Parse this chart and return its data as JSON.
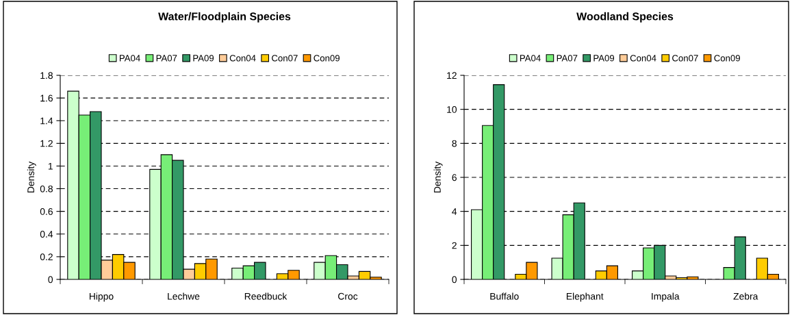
{
  "chart_data": [
    {
      "type": "bar",
      "title": "Water/Floodplain Species",
      "ylabel": "Density",
      "categories": [
        "Hippo",
        "Lechwe",
        "Reedbuck",
        "Croc"
      ],
      "ylim": [
        0,
        1.8
      ],
      "yticks": [
        0,
        0.2,
        0.4,
        0.6,
        0.8,
        1,
        1.2,
        1.4,
        1.6,
        1.8
      ],
      "grid": "y",
      "legend": "top",
      "series": [
        {
          "name": "PA04",
          "color": "#ccffcc",
          "values": [
            1.66,
            0.97,
            0.1,
            0.15
          ]
        },
        {
          "name": "PA07",
          "color": "#77ee77",
          "values": [
            1.45,
            1.1,
            0.12,
            0.21
          ]
        },
        {
          "name": "PA09",
          "color": "#339966",
          "values": [
            1.48,
            1.05,
            0.15,
            0.13
          ]
        },
        {
          "name": "Con04",
          "color": "#ffcc99",
          "values": [
            0.17,
            0.09,
            null,
            0.03
          ]
        },
        {
          "name": "Con07",
          "color": "#ffcc00",
          "values": [
            0.22,
            0.14,
            0.05,
            0.07
          ]
        },
        {
          "name": "Con09",
          "color": "#ff9900",
          "values": [
            0.15,
            0.18,
            0.08,
            0.02
          ]
        }
      ]
    },
    {
      "type": "bar",
      "title": "Woodland Species",
      "ylabel": "Density",
      "categories": [
        "Buffalo",
        "Elephant",
        "Impala",
        "Zebra"
      ],
      "ylim": [
        0,
        12
      ],
      "yticks": [
        0,
        2,
        4,
        6,
        8,
        10,
        12
      ],
      "grid": "y",
      "legend": "top",
      "series": [
        {
          "name": "PA04",
          "color": "#ccffcc",
          "values": [
            4.1,
            1.25,
            0.5,
            null
          ]
        },
        {
          "name": "PA07",
          "color": "#77ee77",
          "values": [
            9.05,
            3.8,
            1.85,
            0.7
          ]
        },
        {
          "name": "PA09",
          "color": "#339966",
          "values": [
            11.45,
            4.5,
            2.0,
            2.5
          ]
        },
        {
          "name": "Con04",
          "color": "#ffcc99",
          "values": [
            null,
            null,
            0.2,
            null
          ]
        },
        {
          "name": "Con07",
          "color": "#ffcc00",
          "values": [
            0.3,
            0.5,
            0.1,
            1.25
          ]
        },
        {
          "name": "Con09",
          "color": "#ff9900",
          "values": [
            1.0,
            0.8,
            0.15,
            0.3
          ]
        }
      ]
    }
  ]
}
